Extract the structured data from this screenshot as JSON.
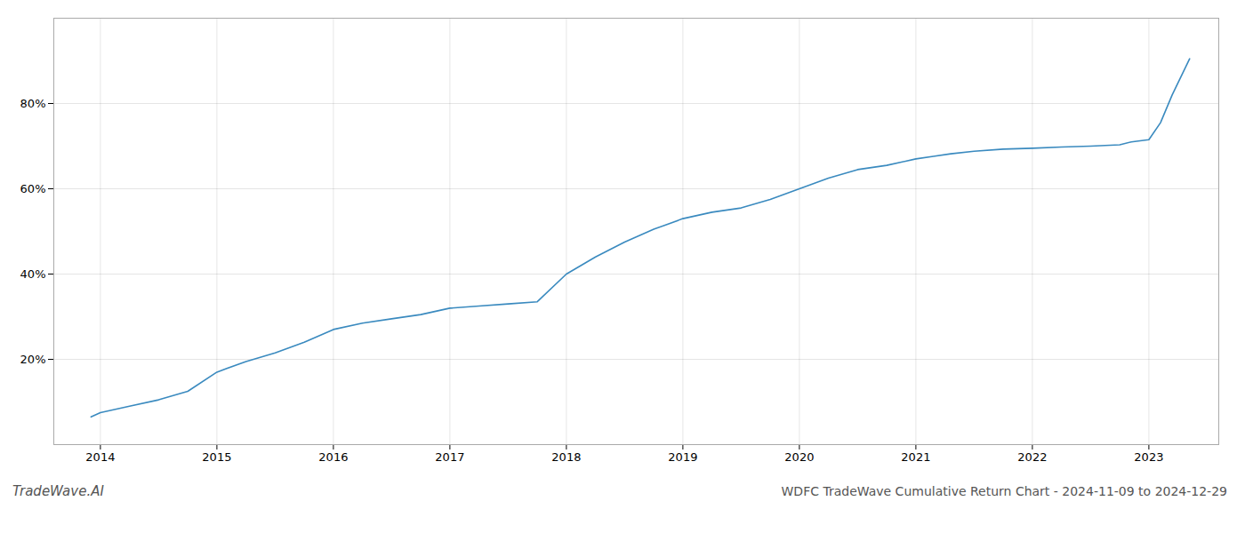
{
  "chart_data": {
    "type": "line",
    "title": "WDFC TradeWave Cumulative Return Chart - 2024-11-09 to 2024-12-29",
    "annotation": "TradeWave.AI",
    "x": [
      2013.92,
      2014.0,
      2014.25,
      2014.5,
      2014.75,
      2015.0,
      2015.25,
      2015.5,
      2015.75,
      2016.0,
      2016.25,
      2016.5,
      2016.75,
      2017.0,
      2017.25,
      2017.5,
      2017.75,
      2018.0,
      2018.25,
      2018.5,
      2018.75,
      2019.0,
      2019.25,
      2019.5,
      2019.75,
      2020.0,
      2020.25,
      2020.5,
      2020.75,
      2021.0,
      2021.15,
      2021.3,
      2021.5,
      2021.75,
      2022.0,
      2022.25,
      2022.5,
      2022.75,
      2022.85,
      2023.0,
      2023.1,
      2023.2,
      2023.35
    ],
    "values": [
      0.065,
      0.075,
      0.09,
      0.105,
      0.125,
      0.17,
      0.195,
      0.215,
      0.24,
      0.27,
      0.285,
      0.295,
      0.305,
      0.32,
      0.325,
      0.33,
      0.335,
      0.4,
      0.44,
      0.475,
      0.505,
      0.53,
      0.545,
      0.555,
      0.575,
      0.6,
      0.625,
      0.645,
      0.655,
      0.67,
      0.676,
      0.682,
      0.688,
      0.693,
      0.695,
      0.698,
      0.7,
      0.703,
      0.71,
      0.715,
      0.755,
      0.82,
      0.905
    ],
    "color": "#3a8abf",
    "xlim": [
      2013.6,
      2023.6
    ],
    "xticks": [
      2014,
      2015,
      2016,
      2017,
      2018,
      2019,
      2020,
      2021,
      2022,
      2023
    ],
    "ylim": [
      0.0,
      1.0
    ],
    "yticks": [
      {
        "value": 0.2,
        "label": "20%"
      },
      {
        "value": 0.4,
        "label": "40%"
      },
      {
        "value": 0.6,
        "label": "60%"
      },
      {
        "value": 0.8,
        "label": "80%"
      }
    ],
    "grid": true
  }
}
